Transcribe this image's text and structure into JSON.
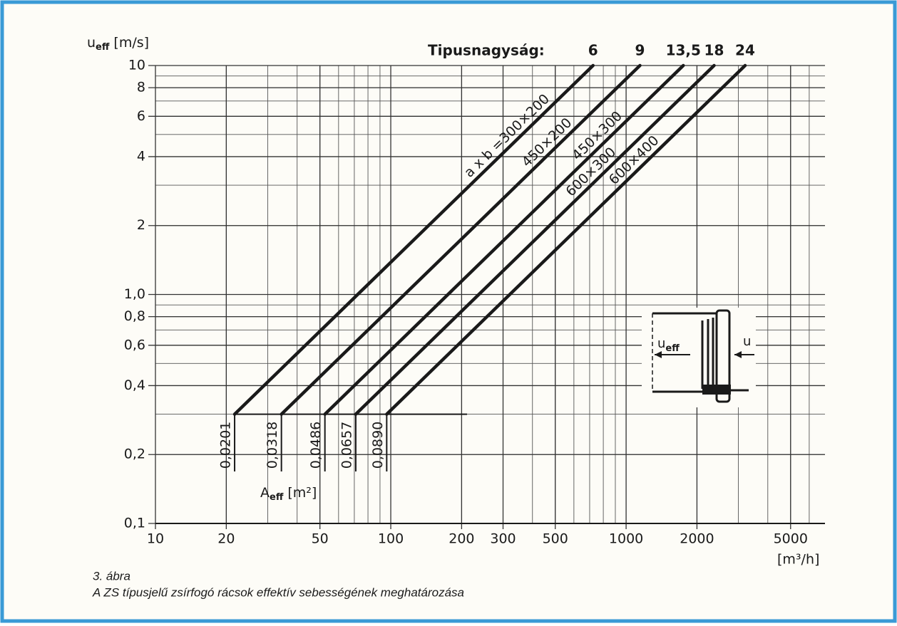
{
  "chart_data": {
    "type": "line",
    "x_scale": "log",
    "y_scale": "log",
    "grid": true,
    "minor_grid": true,
    "xlim": [
      10,
      7000
    ],
    "ylim": [
      0.1,
      10
    ],
    "xticks": [
      10,
      20,
      50,
      100,
      200,
      300,
      500,
      1000,
      2000,
      5000
    ],
    "yticks": [
      {
        "value": 0.1,
        "label": "0,1"
      },
      {
        "value": 0.2,
        "label": "0,2"
      },
      {
        "value": 0.4,
        "label": "0,4"
      },
      {
        "value": 0.6,
        "label": "0,6"
      },
      {
        "value": 0.8,
        "label": "0,8"
      },
      {
        "value": 1.0,
        "label": "1,0"
      },
      2,
      4,
      6,
      8,
      10
    ],
    "y_label": {
      "symbol": "u",
      "sub": "eff",
      "unit": "[m/s]"
    },
    "x_label": "[m³/h]",
    "size_heading": "Tipusnagyság:",
    "area_label": {
      "symbol": "A",
      "sub": "eff",
      "unit": "[m²]"
    },
    "color": "#1a1a1a",
    "series": [
      {
        "name": "a x b =300×200",
        "size": "6",
        "area": "0,0201",
        "x": [
          21.7,
          723.6
        ],
        "values": [
          0.3,
          10
        ]
      },
      {
        "name": "450×200",
        "size": "9",
        "area": "0,0318",
        "x": [
          34.3,
          1144.8
        ],
        "values": [
          0.3,
          10
        ]
      },
      {
        "name": "450×300",
        "size": "13,5",
        "area": "0,0486",
        "x": [
          52.5,
          1749.6
        ],
        "values": [
          0.3,
          10
        ]
      },
      {
        "name": "600×300",
        "size": "18",
        "area": "0,0657",
        "x": [
          71.0,
          2365.2
        ],
        "values": [
          0.3,
          10
        ]
      },
      {
        "name": "600×400",
        "size": "24",
        "area": "0,0890",
        "x": [
          96.1,
          3204.0
        ],
        "values": [
          0.3,
          10
        ]
      }
    ],
    "inset": {
      "left_symbol": "u",
      "left_sub": "eff",
      "right_symbol": "u"
    },
    "caption": {
      "number": "3. ábra",
      "text": "A ZS típusjelű zsírfogó rácsok effektív sebességének meghatározása"
    }
  }
}
